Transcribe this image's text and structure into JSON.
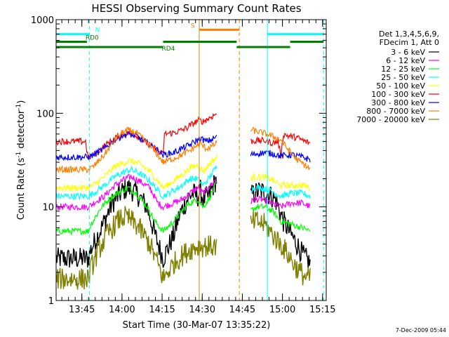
{
  "chart_data": {
    "type": "line",
    "title": "HESSI Observing Summary Count Rates",
    "xlabel": "Start Time (30-Mar-07 13:35:22)",
    "ylabel": "Count Rate (s⁻¹ detector⁻¹)",
    "ylabel_parts": {
      "main": "Count Rate (s",
      "sup1": "-1",
      "mid": " detector",
      "sup2": "-1",
      "end": ")"
    },
    "y_scale": "log",
    "ylim": [
      1,
      1000
    ],
    "xlim_minutes": [
      0,
      101
    ],
    "x_ticks": [
      {
        "label": "13:45",
        "t": 9.63
      },
      {
        "label": "14:00",
        "t": 24.63
      },
      {
        "label": "14:15",
        "t": 39.63
      },
      {
        "label": "14:30",
        "t": 54.63
      },
      {
        "label": "14:45",
        "t": 69.63
      },
      {
        "label": "15:00",
        "t": 84.63
      },
      {
        "label": "15:15",
        "t": 99.63
      }
    ],
    "y_ticks": [
      {
        "label": "1",
        "v": 1
      },
      {
        "label": "10",
        "v": 10
      },
      {
        "label": "100",
        "v": 100
      },
      {
        "label": "1000",
        "v": 1000
      }
    ],
    "legend_header": [
      "Det 1,3,4,5,6,9,",
      "FDecim 1, Att 0"
    ],
    "legend_placement": "right",
    "grid": false,
    "data_gaps_minutes": [
      [
        61,
        70
      ]
    ],
    "series": [
      {
        "name": "3 - 6 keV",
        "color": "#000000",
        "points": [
          [
            0,
            2.8
          ],
          [
            12,
            2.8
          ],
          [
            13,
            3.5
          ],
          [
            17,
            6
          ],
          [
            21,
            11
          ],
          [
            25,
            15
          ],
          [
            27,
            16
          ],
          [
            30,
            14
          ],
          [
            34,
            10
          ],
          [
            37,
            5
          ],
          [
            40,
            2.8
          ],
          [
            44,
            5
          ],
          [
            46,
            8
          ],
          [
            49,
            12
          ],
          [
            51,
            14
          ],
          [
            53,
            13
          ],
          [
            54,
            15
          ],
          [
            55,
            12
          ],
          [
            57,
            13
          ],
          [
            60,
            20
          ],
          [
            72.5,
            13
          ],
          [
            76,
            15
          ],
          [
            79,
            14
          ],
          [
            82,
            12
          ],
          [
            85,
            7
          ],
          [
            88,
            5
          ],
          [
            90,
            4
          ],
          [
            92.5,
            3
          ],
          [
            95,
            2.5
          ]
        ]
      },
      {
        "name": "6 - 12 keV",
        "color": "#ff00ff",
        "points": [
          [
            0,
            10
          ],
          [
            12,
            10
          ],
          [
            14,
            11
          ],
          [
            18,
            13
          ],
          [
            22,
            17
          ],
          [
            26,
            20
          ],
          [
            28,
            21
          ],
          [
            31,
            19
          ],
          [
            35,
            16
          ],
          [
            38,
            11
          ],
          [
            40,
            10
          ],
          [
            44,
            11
          ],
          [
            47,
            12
          ],
          [
            50,
            14
          ],
          [
            53,
            16
          ],
          [
            55,
            14
          ],
          [
            57,
            16
          ],
          [
            60,
            20
          ],
          [
            72.5,
            11
          ],
          [
            74,
            12
          ],
          [
            77,
            12
          ],
          [
            80,
            11
          ],
          [
            84,
            10
          ],
          [
            88,
            11
          ],
          [
            92,
            11
          ],
          [
            95,
            10
          ]
        ]
      },
      {
        "name": "12 - 25 keV",
        "color": "#00ff00",
        "points": [
          [
            0,
            5.5
          ],
          [
            12,
            5.5
          ],
          [
            13,
            6.5
          ],
          [
            17,
            10
          ],
          [
            21,
            13
          ],
          [
            25,
            15
          ],
          [
            27,
            16
          ],
          [
            30,
            14
          ],
          [
            34,
            10
          ],
          [
            37,
            7
          ],
          [
            40,
            5.5
          ],
          [
            44,
            7
          ],
          [
            47,
            9
          ],
          [
            50,
            11
          ],
          [
            53,
            12
          ],
          [
            55,
            10
          ],
          [
            57,
            12
          ],
          [
            60,
            18
          ],
          [
            72.5,
            9
          ],
          [
            75,
            10
          ],
          [
            78,
            10
          ],
          [
            81,
            9
          ],
          [
            84,
            7
          ],
          [
            88,
            6.5
          ],
          [
            92,
            6
          ],
          [
            95,
            5.5
          ]
        ]
      },
      {
        "name": "25 - 50 keV",
        "color": "#00ffff",
        "points": [
          [
            0,
            13
          ],
          [
            12,
            13
          ],
          [
            14,
            14
          ],
          [
            18,
            17
          ],
          [
            22,
            21
          ],
          [
            26,
            24
          ],
          [
            28,
            25
          ],
          [
            31,
            23
          ],
          [
            35,
            19
          ],
          [
            38,
            15
          ],
          [
            40,
            13
          ],
          [
            44,
            15
          ],
          [
            47,
            17
          ],
          [
            50,
            20
          ],
          [
            53,
            20
          ],
          [
            55,
            17
          ],
          [
            57,
            20
          ],
          [
            60,
            27
          ],
          [
            72.5,
            15
          ],
          [
            74,
            16
          ],
          [
            77,
            16
          ],
          [
            80,
            15
          ],
          [
            84,
            13
          ],
          [
            88,
            14
          ],
          [
            92,
            14
          ],
          [
            95,
            13
          ]
        ]
      },
      {
        "name": "50 - 100 keV",
        "color": "#ffff00",
        "points": [
          [
            0,
            16
          ],
          [
            12,
            16
          ],
          [
            14,
            17
          ],
          [
            18,
            21
          ],
          [
            22,
            27
          ],
          [
            26,
            30
          ],
          [
            28,
            31
          ],
          [
            31,
            29
          ],
          [
            35,
            24
          ],
          [
            38,
            19
          ],
          [
            40,
            16
          ],
          [
            44,
            19
          ],
          [
            47,
            22
          ],
          [
            50,
            26
          ],
          [
            53,
            28
          ],
          [
            55,
            24
          ],
          [
            57,
            28
          ],
          [
            60,
            34
          ],
          [
            72.5,
            20
          ],
          [
            74,
            21
          ],
          [
            77,
            21
          ],
          [
            80,
            20
          ],
          [
            84,
            17
          ],
          [
            88,
            17
          ],
          [
            92,
            17
          ],
          [
            95,
            16
          ]
        ]
      },
      {
        "name": "100 - 300 keV",
        "color": "#ff0000",
        "points": [
          [
            0,
            50
          ],
          [
            11,
            50
          ],
          [
            12,
            33
          ],
          [
            14,
            36
          ],
          [
            17,
            42
          ],
          [
            21,
            52
          ],
          [
            25,
            60
          ],
          [
            27,
            62
          ],
          [
            30,
            58
          ],
          [
            34,
            48
          ],
          [
            38,
            40
          ],
          [
            40,
            36
          ],
          [
            40.5,
            60
          ],
          [
            44,
            62
          ],
          [
            47,
            66
          ],
          [
            48,
            68
          ],
          [
            49,
            70
          ],
          [
            50,
            74
          ],
          [
            52,
            80
          ],
          [
            53,
            84
          ],
          [
            55,
            82
          ],
          [
            57,
            88
          ],
          [
            59,
            95
          ],
          [
            60,
            100
          ],
          [
            72.5,
            50
          ],
          [
            75,
            51
          ],
          [
            78,
            51
          ],
          [
            81,
            48
          ],
          [
            83,
            50
          ],
          [
            84,
            35
          ],
          [
            85,
            60
          ],
          [
            87,
            57
          ],
          [
            90,
            55
          ],
          [
            93,
            50
          ],
          [
            95,
            48
          ]
        ]
      },
      {
        "name": "300 - 800 keV",
        "color": "#0000ff",
        "points": [
          [
            0,
            34
          ],
          [
            12,
            34
          ],
          [
            14,
            36
          ],
          [
            18,
            42
          ],
          [
            22,
            52
          ],
          [
            25,
            58
          ],
          [
            27,
            60
          ],
          [
            30,
            57
          ],
          [
            34,
            48
          ],
          [
            38,
            40
          ],
          [
            40,
            36
          ],
          [
            44,
            38
          ],
          [
            47,
            42
          ],
          [
            50,
            46
          ],
          [
            52,
            50
          ],
          [
            54,
            54
          ],
          [
            56,
            50
          ],
          [
            58,
            52
          ],
          [
            60,
            56
          ],
          [
            72.5,
            36
          ],
          [
            75,
            37
          ],
          [
            78,
            38
          ],
          [
            81,
            37
          ],
          [
            84,
            35
          ],
          [
            88,
            36
          ],
          [
            92,
            34
          ],
          [
            95,
            32
          ]
        ]
      },
      {
        "name": "800 - 7000 keV",
        "color": "#ff8000",
        "points": [
          [
            0,
            25
          ],
          [
            12,
            25
          ],
          [
            14,
            27
          ],
          [
            18,
            36
          ],
          [
            22,
            52
          ],
          [
            25,
            63
          ],
          [
            27,
            66
          ],
          [
            30,
            62
          ],
          [
            34,
            48
          ],
          [
            38,
            36
          ],
          [
            40,
            30
          ],
          [
            44,
            33
          ],
          [
            47,
            36
          ],
          [
            50,
            40
          ],
          [
            52,
            44
          ],
          [
            54,
            47
          ],
          [
            56,
            42
          ],
          [
            58,
            44
          ],
          [
            60,
            48
          ],
          [
            72.5,
            67
          ],
          [
            74,
            65
          ],
          [
            77,
            62
          ],
          [
            80,
            58
          ],
          [
            84,
            52
          ],
          [
            87,
            40
          ],
          [
            90,
            32
          ],
          [
            93,
            28
          ],
          [
            95,
            25
          ]
        ]
      },
      {
        "name": "7000 - 20000 keV",
        "color": "#808000",
        "points": [
          [
            0,
            1.7
          ],
          [
            12,
            1.7
          ],
          [
            13,
            2.2
          ],
          [
            16,
            3.5
          ],
          [
            19,
            5
          ],
          [
            22,
            6.5
          ],
          [
            24,
            7.5
          ],
          [
            26,
            7.8
          ],
          [
            28,
            7.2
          ],
          [
            31,
            6
          ],
          [
            35,
            4
          ],
          [
            38,
            2.5
          ],
          [
            40,
            1.7
          ],
          [
            44,
            2.5
          ],
          [
            47,
            3
          ],
          [
            50,
            3.5
          ],
          [
            53,
            3.8
          ],
          [
            57,
            3.8
          ],
          [
            60,
            3.8
          ],
          [
            72.5,
            6.5
          ],
          [
            75,
            7
          ],
          [
            78,
            6.5
          ],
          [
            81,
            5
          ],
          [
            84,
            4
          ],
          [
            87,
            3
          ],
          [
            90,
            2.2
          ],
          [
            93,
            1.8
          ],
          [
            95,
            1.7
          ]
        ]
      }
    ],
    "annotations": {
      "segments": [
        {
          "label": "N",
          "color": "#00ffff",
          "y": 700,
          "t0": 0,
          "t1": 12.5
        },
        {
          "label": "",
          "color": "#00ffff",
          "y": 700,
          "t0": 79,
          "t1": 100
        },
        {
          "label": "S",
          "color": "#ff8000",
          "y": 780,
          "t0": 53.5,
          "t1": 68.5
        },
        {
          "label": "RD0",
          "color": "#008000",
          "y": 580,
          "t0": 0,
          "t1": 11.5
        },
        {
          "label": "RD4",
          "color": "#008000",
          "y": 510,
          "t0": 0,
          "t1": 40
        },
        {
          "label": "",
          "color": "#008000",
          "y": 580,
          "t0": 40,
          "t1": 67.5
        },
        {
          "label": "",
          "color": "#008000",
          "y": 510,
          "t0": 67.5,
          "t1": 87.5
        },
        {
          "label": "",
          "color": "#008000",
          "y": 580,
          "t0": 87.5,
          "t1": 100
        }
      ],
      "vlines": [
        {
          "color": "#00ffff",
          "style": "solid",
          "t": 0
        },
        {
          "color": "#00ffff",
          "style": "dashed",
          "t": 12.5
        },
        {
          "color": "#00ffff",
          "style": "solid",
          "t": 79
        },
        {
          "color": "#00ffff",
          "style": "dashed",
          "t": 100
        },
        {
          "color": "#cc8800",
          "style": "solid",
          "t": 53.5
        },
        {
          "color": "#ff8000",
          "style": "dashed",
          "t": 68.5
        }
      ]
    },
    "stamp": "7-Dec-2009 05:44"
  }
}
